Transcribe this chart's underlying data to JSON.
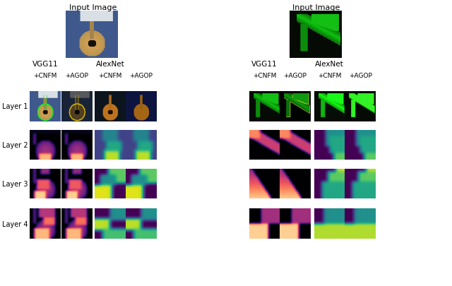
{
  "title_left": "Input Image",
  "title_right": "Input Image",
  "vgg11_label": "VGG11",
  "alexnet_label": "AlexNet",
  "cnfm_label": "+CNFM",
  "agop_label": "+AGOP",
  "layer_labels": [
    "Layer 1",
    "Layer 2",
    "Layer 3",
    "Layer 4"
  ],
  "background_color": "#ffffff",
  "font_size_title": 8,
  "font_size_label": 7.5,
  "font_size_sub": 6.5,
  "font_size_layer": 7
}
